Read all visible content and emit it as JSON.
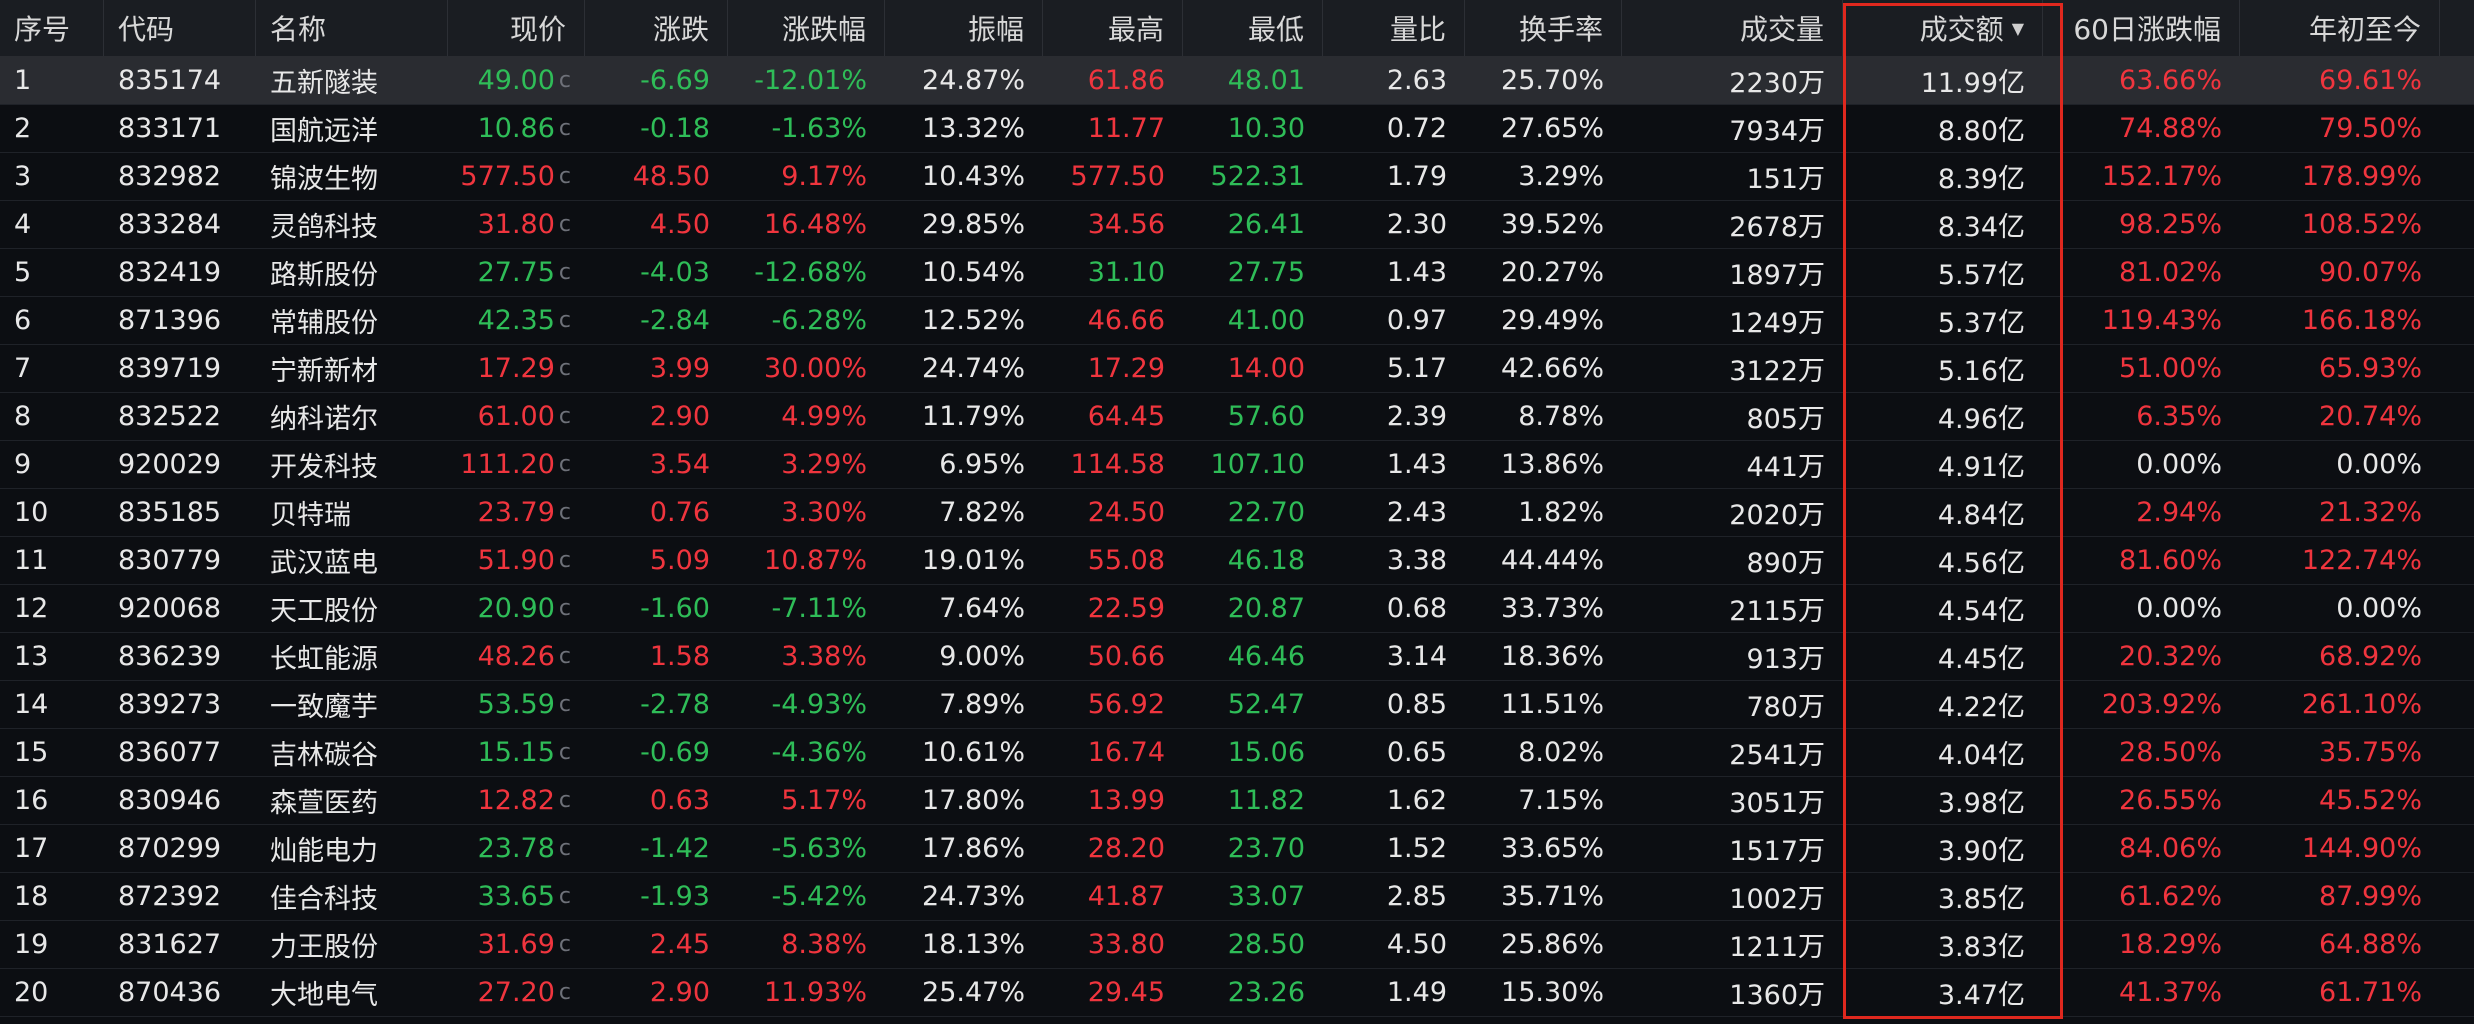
{
  "table": {
    "columns": [
      {
        "key": "idx",
        "label": "序号",
        "align": "l"
      },
      {
        "key": "code",
        "label": "代码",
        "align": "l"
      },
      {
        "key": "name",
        "label": "名称",
        "align": "l"
      },
      {
        "key": "price",
        "label": "现价",
        "align": "r"
      },
      {
        "key": "change",
        "label": "涨跌",
        "align": "r"
      },
      {
        "key": "pct",
        "label": "涨跌幅",
        "align": "r"
      },
      {
        "key": "amp",
        "label": "振幅",
        "align": "r"
      },
      {
        "key": "high",
        "label": "最高",
        "align": "r"
      },
      {
        "key": "low",
        "label": "最低",
        "align": "r"
      },
      {
        "key": "vr",
        "label": "量比",
        "align": "r"
      },
      {
        "key": "turn",
        "label": "换手率",
        "align": "r"
      },
      {
        "key": "vol",
        "label": "成交量",
        "align": "r"
      },
      {
        "key": "amt",
        "label": "成交额",
        "align": "r",
        "sorted": true
      },
      {
        "key": "d60",
        "label": "60日涨跌幅",
        "align": "r"
      },
      {
        "key": "ytd",
        "label": "年初至今",
        "align": "r"
      }
    ],
    "sort_indicator": "▼",
    "price_badge": "c",
    "selected_row": 0,
    "colors": {
      "up": "#f0353e",
      "down": "#2fbd58",
      "neutral": "#e8e8e8",
      "highlight": "#e0281e"
    },
    "rows": [
      {
        "idx": "1",
        "code": "835174",
        "name": "五新隧装",
        "price": "49.00",
        "change": "-6.69",
        "pct": "-12.01%",
        "amp": "24.87%",
        "high": "61.86",
        "low": "48.01",
        "vr": "2.63",
        "turn": "25.70%",
        "vol": "2230万",
        "amt": "11.99亿",
        "d60": "63.66%",
        "ytd": "69.61%"
      },
      {
        "idx": "2",
        "code": "833171",
        "name": "国航远洋",
        "price": "10.86",
        "change": "-0.18",
        "pct": "-1.63%",
        "amp": "13.32%",
        "high": "11.77",
        "low": "10.30",
        "vr": "0.72",
        "turn": "27.65%",
        "vol": "7934万",
        "amt": "8.80亿",
        "d60": "74.88%",
        "ytd": "79.50%"
      },
      {
        "idx": "3",
        "code": "832982",
        "name": "锦波生物",
        "price": "577.50",
        "change": "48.50",
        "pct": "9.17%",
        "amp": "10.43%",
        "high": "577.50",
        "low": "522.31",
        "vr": "1.79",
        "turn": "3.29%",
        "vol": "151万",
        "amt": "8.39亿",
        "d60": "152.17%",
        "ytd": "178.99%"
      },
      {
        "idx": "4",
        "code": "833284",
        "name": "灵鸽科技",
        "price": "31.80",
        "change": "4.50",
        "pct": "16.48%",
        "amp": "29.85%",
        "high": "34.56",
        "low": "26.41",
        "vr": "2.30",
        "turn": "39.52%",
        "vol": "2678万",
        "amt": "8.34亿",
        "d60": "98.25%",
        "ytd": "108.52%"
      },
      {
        "idx": "5",
        "code": "832419",
        "name": "路斯股份",
        "price": "27.75",
        "change": "-4.03",
        "pct": "-12.68%",
        "amp": "10.54%",
        "high": "31.10",
        "low": "27.75",
        "vr": "1.43",
        "turn": "20.27%",
        "vol": "1897万",
        "amt": "5.57亿",
        "d60": "81.02%",
        "ytd": "90.07%"
      },
      {
        "idx": "6",
        "code": "871396",
        "name": "常辅股份",
        "price": "42.35",
        "change": "-2.84",
        "pct": "-6.28%",
        "amp": "12.52%",
        "high": "46.66",
        "low": "41.00",
        "vr": "0.97",
        "turn": "29.49%",
        "vol": "1249万",
        "amt": "5.37亿",
        "d60": "119.43%",
        "ytd": "166.18%"
      },
      {
        "idx": "7",
        "code": "839719",
        "name": "宁新新材",
        "price": "17.29",
        "change": "3.99",
        "pct": "30.00%",
        "amp": "24.74%",
        "high": "17.29",
        "low": "14.00",
        "vr": "5.17",
        "turn": "42.66%",
        "vol": "3122万",
        "amt": "5.16亿",
        "d60": "51.00%",
        "ytd": "65.93%"
      },
      {
        "idx": "8",
        "code": "832522",
        "name": "纳科诺尔",
        "price": "61.00",
        "change": "2.90",
        "pct": "4.99%",
        "amp": "11.79%",
        "high": "64.45",
        "low": "57.60",
        "vr": "2.39",
        "turn": "8.78%",
        "vol": "805万",
        "amt": "4.96亿",
        "d60": "6.35%",
        "ytd": "20.74%"
      },
      {
        "idx": "9",
        "code": "920029",
        "name": "开发科技",
        "price": "111.20",
        "change": "3.54",
        "pct": "3.29%",
        "amp": "6.95%",
        "high": "114.58",
        "low": "107.10",
        "vr": "1.43",
        "turn": "13.86%",
        "vol": "441万",
        "amt": "4.91亿",
        "d60": "0.00%",
        "ytd": "0.00%"
      },
      {
        "idx": "10",
        "code": "835185",
        "name": "贝特瑞",
        "price": "23.79",
        "change": "0.76",
        "pct": "3.30%",
        "amp": "7.82%",
        "high": "24.50",
        "low": "22.70",
        "vr": "2.43",
        "turn": "1.82%",
        "vol": "2020万",
        "amt": "4.84亿",
        "d60": "2.94%",
        "ytd": "21.32%"
      },
      {
        "idx": "11",
        "code": "830779",
        "name": "武汉蓝电",
        "price": "51.90",
        "change": "5.09",
        "pct": "10.87%",
        "amp": "19.01%",
        "high": "55.08",
        "low": "46.18",
        "vr": "3.38",
        "turn": "44.44%",
        "vol": "890万",
        "amt": "4.56亿",
        "d60": "81.60%",
        "ytd": "122.74%"
      },
      {
        "idx": "12",
        "code": "920068",
        "name": "天工股份",
        "price": "20.90",
        "change": "-1.60",
        "pct": "-7.11%",
        "amp": "7.64%",
        "high": "22.59",
        "low": "20.87",
        "vr": "0.68",
        "turn": "33.73%",
        "vol": "2115万",
        "amt": "4.54亿",
        "d60": "0.00%",
        "ytd": "0.00%"
      },
      {
        "idx": "13",
        "code": "836239",
        "name": "长虹能源",
        "price": "48.26",
        "change": "1.58",
        "pct": "3.38%",
        "amp": "9.00%",
        "high": "50.66",
        "low": "46.46",
        "vr": "3.14",
        "turn": "18.36%",
        "vol": "913万",
        "amt": "4.45亿",
        "d60": "20.32%",
        "ytd": "68.92%"
      },
      {
        "idx": "14",
        "code": "839273",
        "name": "一致魔芋",
        "price": "53.59",
        "change": "-2.78",
        "pct": "-4.93%",
        "amp": "7.89%",
        "high": "56.92",
        "low": "52.47",
        "vr": "0.85",
        "turn": "11.51%",
        "vol": "780万",
        "amt": "4.22亿",
        "d60": "203.92%",
        "ytd": "261.10%"
      },
      {
        "idx": "15",
        "code": "836077",
        "name": "吉林碳谷",
        "price": "15.15",
        "change": "-0.69",
        "pct": "-4.36%",
        "amp": "10.61%",
        "high": "16.74",
        "low": "15.06",
        "vr": "0.65",
        "turn": "8.02%",
        "vol": "2541万",
        "amt": "4.04亿",
        "d60": "28.50%",
        "ytd": "35.75%"
      },
      {
        "idx": "16",
        "code": "830946",
        "name": "森萱医药",
        "price": "12.82",
        "change": "0.63",
        "pct": "5.17%",
        "amp": "17.80%",
        "high": "13.99",
        "low": "11.82",
        "vr": "1.62",
        "turn": "7.15%",
        "vol": "3051万",
        "amt": "3.98亿",
        "d60": "26.55%",
        "ytd": "45.52%"
      },
      {
        "idx": "17",
        "code": "870299",
        "name": "灿能电力",
        "price": "23.78",
        "change": "-1.42",
        "pct": "-5.63%",
        "amp": "17.86%",
        "high": "28.20",
        "low": "23.70",
        "vr": "1.52",
        "turn": "33.65%",
        "vol": "1517万",
        "amt": "3.90亿",
        "d60": "84.06%",
        "ytd": "144.90%"
      },
      {
        "idx": "18",
        "code": "872392",
        "name": "佳合科技",
        "price": "33.65",
        "change": "-1.93",
        "pct": "-5.42%",
        "amp": "24.73%",
        "high": "41.87",
        "low": "33.07",
        "vr": "2.85",
        "turn": "35.71%",
        "vol": "1002万",
        "amt": "3.85亿",
        "d60": "61.62%",
        "ytd": "87.99%"
      },
      {
        "idx": "19",
        "code": "831627",
        "name": "力王股份",
        "price": "31.69",
        "change": "2.45",
        "pct": "8.38%",
        "amp": "18.13%",
        "high": "33.80",
        "low": "28.50",
        "vr": "4.50",
        "turn": "25.86%",
        "vol": "1211万",
        "amt": "3.83亿",
        "d60": "18.29%",
        "ytd": "64.88%"
      },
      {
        "idx": "20",
        "code": "870436",
        "name": "大地电气",
        "price": "27.20",
        "change": "2.90",
        "pct": "11.93%",
        "amp": "25.47%",
        "high": "29.45",
        "low": "23.26",
        "vr": "1.49",
        "turn": "15.30%",
        "vol": "1360万",
        "amt": "3.47亿",
        "d60": "41.37%",
        "ytd": "61.71%"
      }
    ]
  }
}
